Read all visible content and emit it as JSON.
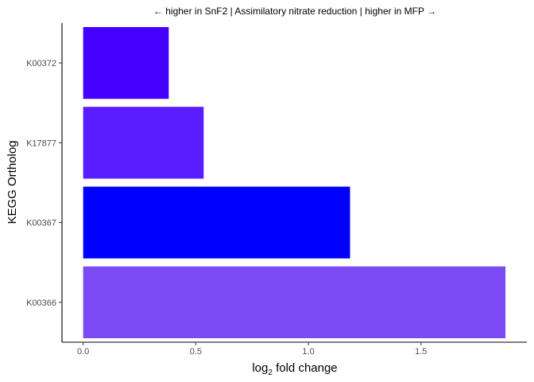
{
  "chart_data": {
    "type": "bar",
    "orientation": "horizontal",
    "title": "← higher in SnF2 | Assimilatory nitrate reduction | higher in MFP →",
    "xlabel_main": "log",
    "xlabel_sub": "2",
    "xlabel_rest": " fold change",
    "ylabel": "KEGG Ortholog",
    "categories": [
      "K00372",
      "K17877",
      "K00367",
      "K00366"
    ],
    "values": [
      0.38,
      0.535,
      1.185,
      1.875
    ],
    "colors": [
      "#4400ff",
      "#5a1dff",
      "#0000ff",
      "#7b4af2"
    ],
    "xlim": [
      -0.094,
      1.97
    ],
    "xticks": [
      0.0,
      0.5,
      1.0,
      1.5
    ],
    "xtick_labels": [
      "0.0",
      "0.5",
      "1.0",
      "1.5"
    ],
    "grid": false,
    "legend": "none"
  }
}
